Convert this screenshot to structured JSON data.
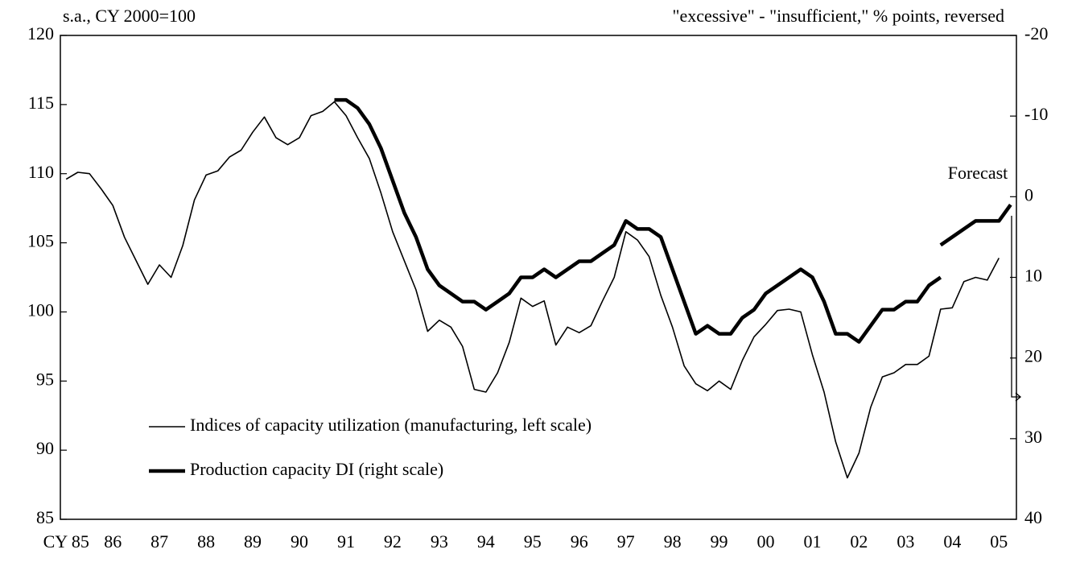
{
  "chart_data": {
    "type": "line",
    "y_axis_label": "s.a., CY 2000=100",
    "y2_axis_label": "\"excessive\" - \"insufficient,\" % points, reversed",
    "annotation": "Forecast",
    "categories": [
      "CY 85",
      null,
      null,
      null,
      "86",
      null,
      null,
      null,
      "87",
      null,
      null,
      null,
      "88",
      null,
      null,
      null,
      "89",
      null,
      null,
      null,
      "90",
      null,
      null,
      null,
      "91",
      null,
      null,
      null,
      "92",
      null,
      null,
      null,
      "93",
      null,
      null,
      null,
      "94",
      null,
      null,
      null,
      "95",
      null,
      null,
      null,
      "96",
      null,
      null,
      null,
      "97",
      null,
      null,
      null,
      "98",
      null,
      null,
      null,
      "99",
      null,
      null,
      null,
      "00",
      null,
      null,
      null,
      "01",
      null,
      null,
      null,
      "02",
      null,
      null,
      null,
      "03",
      null,
      null,
      null,
      "04",
      null,
      null,
      null,
      "05",
      null
    ],
    "series": [
      {
        "name": "Indices of capacity utilization (manufacturing, left scale)",
        "color": "#000000",
        "line_width": 1.6,
        "axis": "y",
        "values": [
          109.6,
          110.1,
          110.0,
          108.9,
          107.7,
          105.4,
          103.7,
          102.0,
          103.4,
          102.5,
          104.8,
          108.1,
          109.9,
          110.2,
          111.2,
          111.7,
          113.0,
          114.1,
          112.6,
          112.1,
          112.6,
          114.2,
          114.5,
          115.2,
          114.2,
          112.6,
          111.1,
          108.6,
          105.8,
          103.7,
          101.6,
          98.6,
          99.4,
          98.9,
          97.5,
          94.4,
          94.2,
          95.6,
          97.8,
          101.0,
          100.4,
          100.8,
          97.6,
          98.9,
          98.5,
          99.0,
          100.8,
          102.5,
          105.8,
          105.2,
          104.0,
          101.2,
          98.9,
          96.1,
          94.8,
          94.3,
          95.0,
          94.4,
          96.5,
          98.2,
          99.1,
          100.1,
          100.2,
          100.0,
          96.9,
          94.2,
          90.6,
          88.0,
          89.8,
          93.1,
          95.3,
          95.6,
          96.2,
          96.2,
          96.8,
          100.2,
          100.3,
          102.2,
          102.5,
          102.3,
          103.9,
          null
        ]
      },
      {
        "name": "Production capacity DI (right scale)",
        "color": "#000000",
        "line_width": 4.5,
        "axis": "y2",
        "values": [
          null,
          null,
          null,
          null,
          null,
          null,
          null,
          null,
          null,
          null,
          null,
          null,
          null,
          null,
          null,
          null,
          null,
          null,
          null,
          null,
          null,
          null,
          null,
          -12,
          -12,
          -11,
          -9,
          -6,
          -2,
          2,
          5,
          9,
          11,
          12,
          13,
          13,
          14,
          13,
          12,
          10,
          10,
          9,
          10,
          9,
          8,
          8,
          7,
          6,
          3,
          4,
          4,
          5,
          9,
          13,
          17,
          16,
          17,
          17,
          15,
          14,
          12,
          11,
          10,
          9,
          10,
          13,
          17,
          17,
          18,
          16,
          14,
          14,
          13,
          13,
          11,
          10,
          null,
          null,
          null,
          null,
          null,
          null
        ],
        "forecast": [
          null,
          null,
          null,
          null,
          null,
          null,
          null,
          null,
          null,
          null,
          null,
          null,
          null,
          null,
          null,
          null,
          null,
          null,
          null,
          null,
          null,
          null,
          null,
          null,
          null,
          null,
          null,
          null,
          null,
          null,
          null,
          null,
          null,
          null,
          null,
          null,
          null,
          null,
          null,
          null,
          null,
          null,
          null,
          null,
          null,
          null,
          null,
          null,
          null,
          null,
          null,
          null,
          null,
          null,
          null,
          null,
          null,
          null,
          null,
          null,
          null,
          null,
          null,
          null,
          null,
          null,
          null,
          null,
          null,
          null,
          null,
          null,
          null,
          null,
          null,
          6,
          5,
          4,
          3,
          3,
          3,
          1
        ]
      }
    ],
    "ylim": [
      85,
      120
    ],
    "yticks": [
      85,
      90,
      95,
      100,
      105,
      110,
      115,
      120
    ],
    "y2lim": [
      40,
      -20
    ],
    "y2ticks": [
      40,
      30,
      20,
      10,
      0,
      -10,
      -20
    ]
  }
}
